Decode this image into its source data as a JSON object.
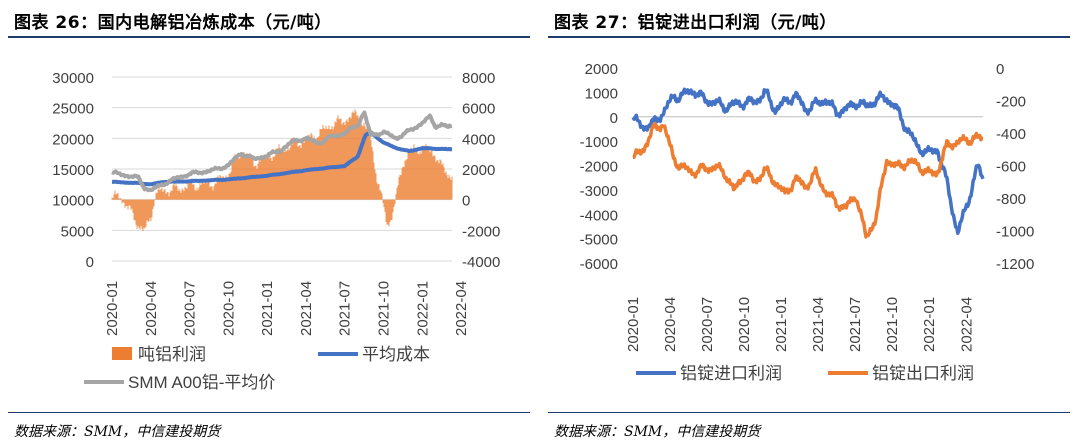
{
  "left": {
    "title": "图表 26：国内电解铝冶炼成本（元/吨）",
    "source": "数据来源：SMM，中信建投期货",
    "chart_data": {
      "type": "bar+line",
      "x_ticks": [
        "2020-01",
        "2020-04",
        "2020-07",
        "2020-10",
        "2021-01",
        "2021-04",
        "2021-07",
        "2021-10",
        "2022-01",
        "2022-04"
      ],
      "y_left": {
        "min": 0,
        "max": 30000,
        "ticks": [
          "0",
          "5000",
          "10000",
          "15000",
          "20000",
          "25000",
          "30000"
        ]
      },
      "y_right": {
        "min": -4000,
        "max": 8000,
        "ticks": [
          "-4000",
          "-2000",
          "0",
          "2000",
          "4000",
          "6000",
          "8000"
        ]
      },
      "series": [
        {
          "name": "吨铝利润",
          "axis": "right",
          "kind": "bar",
          "color": "#ed7d31",
          "points": [
            [
              0,
              0
            ],
            [
              0.5,
              300
            ],
            [
              1,
              -200
            ],
            [
              1.5,
              -900
            ],
            [
              2,
              -1600
            ],
            [
              2.5,
              -2100
            ],
            [
              3,
              -1200
            ],
            [
              3.3,
              200
            ],
            [
              3.6,
              500
            ],
            [
              4,
              600
            ],
            [
              5,
              700
            ],
            [
              6,
              900
            ],
            [
              7,
              1000
            ],
            [
              8,
              1100
            ],
            [
              9,
              1700
            ],
            [
              10,
              3200
            ],
            [
              11,
              2400
            ],
            [
              12,
              2800
            ],
            [
              13,
              3200
            ],
            [
              14,
              3600
            ],
            [
              15,
              3900
            ],
            [
              16,
              4300
            ],
            [
              17,
              4900
            ],
            [
              18,
              5200
            ],
            [
              19,
              5600
            ],
            [
              20,
              4000
            ],
            [
              20.5,
              1500
            ],
            [
              21,
              -500
            ],
            [
              21.3,
              -1700
            ],
            [
              21.6,
              -1200
            ],
            [
              22,
              200
            ],
            [
              22.5,
              2400
            ],
            [
              23,
              3100
            ],
            [
              24,
              3400
            ],
            [
              25,
              3000
            ],
            [
              25.5,
              2100
            ],
            [
              26,
              1700
            ],
            [
              26.3,
              1500
            ]
          ]
        },
        {
          "name": "平均成本",
          "axis": "left",
          "kind": "line",
          "color": "#4472c4",
          "points": [
            [
              0,
              12900
            ],
            [
              1,
              12800
            ],
            [
              2,
              12700
            ],
            [
              3,
              12500
            ],
            [
              4,
              12900
            ],
            [
              6,
              13000
            ],
            [
              9,
              13300
            ],
            [
              12,
              13900
            ],
            [
              15,
              14800
            ],
            [
              18,
              15500
            ],
            [
              19,
              17000
            ],
            [
              19.6,
              20500
            ],
            [
              20,
              21000
            ],
            [
              21,
              19300
            ],
            [
              22,
              18400
            ],
            [
              23,
              17900
            ],
            [
              24,
              18400
            ],
            [
              26.3,
              18200
            ]
          ]
        },
        {
          "name": "SMM A00铝-平均价",
          "axis": "left",
          "kind": "line",
          "color": "#a5a5a5",
          "points": [
            [
              0,
              14400
            ],
            [
              1,
              14000
            ],
            [
              2,
              13600
            ],
            [
              2.5,
              12000
            ],
            [
              3,
              11500
            ],
            [
              4,
              12600
            ],
            [
              5,
              13500
            ],
            [
              6,
              14200
            ],
            [
              7,
              14500
            ],
            [
              8,
              14900
            ],
            [
              9,
              15600
            ],
            [
              10,
              17600
            ],
            [
              11,
              16600
            ],
            [
              12,
              17200
            ],
            [
              13,
              18000
            ],
            [
              14,
              19500
            ],
            [
              15,
              20000
            ],
            [
              16,
              19200
            ],
            [
              17,
              20300
            ],
            [
              18,
              20800
            ],
            [
              19,
              22200
            ],
            [
              19.5,
              24300
            ],
            [
              20,
              20500
            ],
            [
              21,
              21000
            ],
            [
              22,
              20000
            ],
            [
              23,
              21200
            ],
            [
              24,
              22500
            ],
            [
              24.6,
              23500
            ],
            [
              25,
              22000
            ],
            [
              25.5,
              22200
            ],
            [
              26,
              21800
            ],
            [
              26.3,
              22000
            ]
          ]
        }
      ],
      "legend": [
        "吨铝利润",
        "平均成本",
        "SMM A00铝-平均价"
      ]
    }
  },
  "right": {
    "title": "图表 27：铝锭进出口利润（元/吨）",
    "source": "数据来源：SMM，中信建投期货",
    "chart_data": {
      "type": "line",
      "x_ticks": [
        "2020-01",
        "2020-04",
        "2020-07",
        "2020-10",
        "2021-01",
        "2021-04",
        "2021-07",
        "2021-10",
        "2022-01",
        "2022-04"
      ],
      "y_left": {
        "min": -6000,
        "max": 2000,
        "ticks": [
          "-6000",
          "-5000",
          "-4000",
          "-3000",
          "-2000",
          "-1000",
          "0",
          "1000",
          "2000"
        ]
      },
      "y_right": {
        "min": -1200,
        "max": 0,
        "ticks": [
          "-1200",
          "-1000",
          "-800",
          "-600",
          "-400",
          "-200",
          "0"
        ]
      },
      "series": [
        {
          "name": "铝锭进口利润",
          "axis": "left",
          "color": "#4472c4",
          "points": [
            [
              0,
              -100
            ],
            [
              1,
              -400
            ],
            [
              2,
              -300
            ],
            [
              3,
              200
            ],
            [
              4,
              800
            ],
            [
              5,
              900
            ],
            [
              6,
              1100
            ],
            [
              7,
              700
            ],
            [
              8,
              600
            ],
            [
              9,
              400
            ],
            [
              10,
              500
            ],
            [
              11,
              600
            ],
            [
              12,
              600
            ],
            [
              13,
              1000
            ],
            [
              14,
              300
            ],
            [
              15,
              600
            ],
            [
              16,
              900
            ],
            [
              17,
              300
            ],
            [
              18,
              500
            ],
            [
              19,
              700
            ],
            [
              20,
              200
            ],
            [
              21,
              300
            ],
            [
              22,
              600
            ],
            [
              23,
              400
            ],
            [
              24,
              700
            ],
            [
              25,
              800
            ],
            [
              26,
              300
            ],
            [
              27,
              -500
            ],
            [
              28,
              -1200
            ],
            [
              29,
              -1500
            ],
            [
              30,
              -1300
            ],
            [
              31,
              -2800
            ],
            [
              32,
              -4800
            ],
            [
              33,
              -3500
            ],
            [
              34,
              -2000
            ],
            [
              34.5,
              -2600
            ]
          ]
        },
        {
          "name": "铝锭出口利润",
          "axis": "right",
          "color": "#ed7d31",
          "points": [
            [
              0,
              -560
            ],
            [
              1,
              -500
            ],
            [
              2,
              -380
            ],
            [
              3,
              -340
            ],
            [
              4,
              -560
            ],
            [
              5,
              -620
            ],
            [
              6,
              -640
            ],
            [
              7,
              -620
            ],
            [
              8,
              -610
            ],
            [
              9,
              -640
            ],
            [
              10,
              -760
            ],
            [
              11,
              -640
            ],
            [
              12,
              -700
            ],
            [
              13,
              -630
            ],
            [
              14,
              -700
            ],
            [
              15,
              -780
            ],
            [
              16,
              -680
            ],
            [
              17,
              -730
            ],
            [
              18,
              -650
            ],
            [
              19,
              -760
            ],
            [
              20,
              -830
            ],
            [
              21,
              -860
            ],
            [
              22,
              -780
            ],
            [
              23,
              -1050
            ],
            [
              24,
              -910
            ],
            [
              25,
              -560
            ],
            [
              26,
              -610
            ],
            [
              27,
              -580
            ],
            [
              28,
              -590
            ],
            [
              29,
              -650
            ],
            [
              30,
              -640
            ],
            [
              31,
              -470
            ],
            [
              32,
              -460
            ],
            [
              33,
              -440
            ],
            [
              34,
              -430
            ],
            [
              34.5,
              -440
            ]
          ]
        }
      ],
      "legend": [
        "铝锭进口利润",
        "铝锭出口利润"
      ]
    }
  }
}
